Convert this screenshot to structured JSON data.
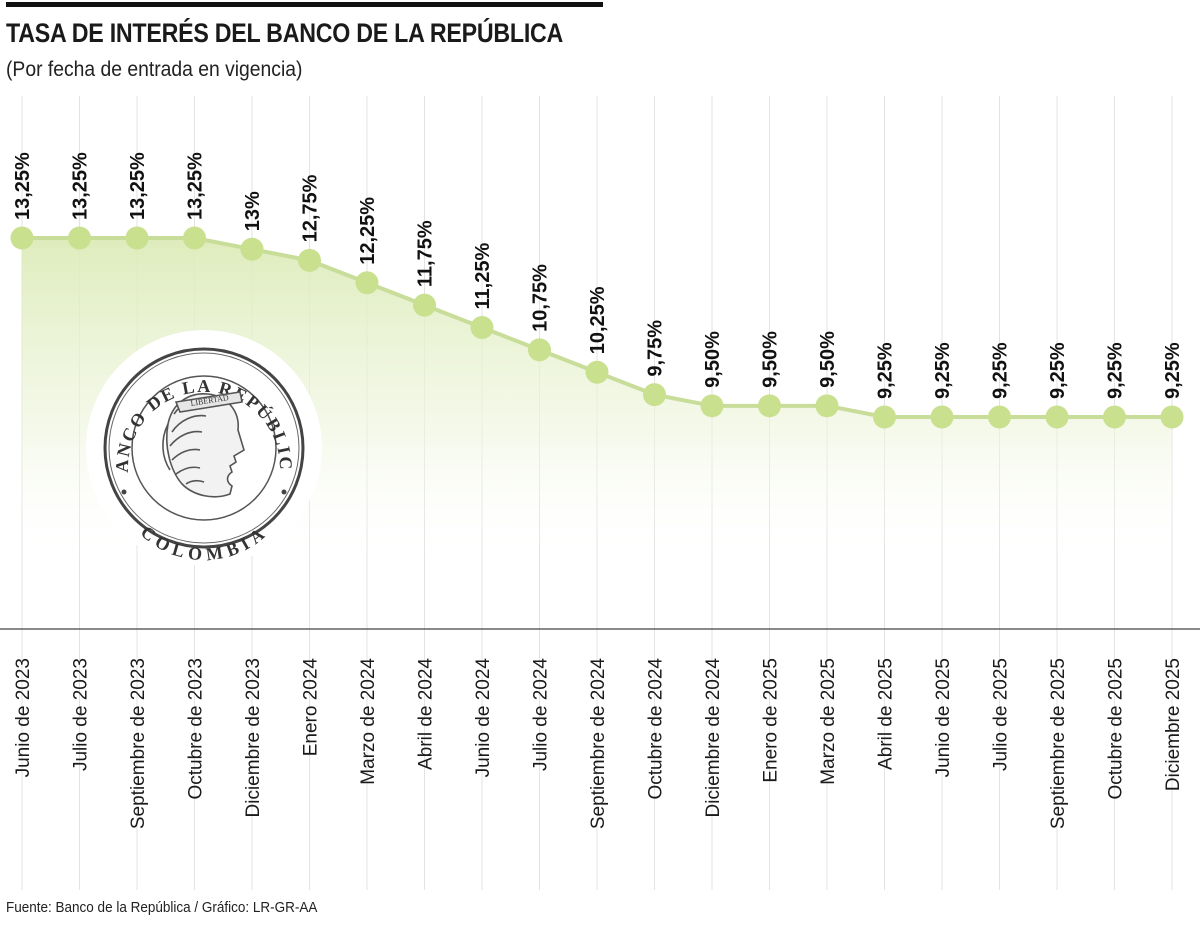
{
  "header": {
    "title": "TASA DE INTERÉS DEL BANCO DE LA REPÚBLICA",
    "subtitle": "(Por fecha de entrada en vigencia)"
  },
  "footer": {
    "source": "Fuente: Banco de la República / Gráfico: LR-GR-AA"
  },
  "emblem": {
    "top_text": "BANCO DE LA REPÚBLICA",
    "bottom_text": "COLOMBIA",
    "ribbon_text": "LIBERTAD"
  },
  "colors": {
    "line": "#c9dd9a",
    "marker": "#c9e08f",
    "area_top": "#dcebb8",
    "grid": "#e3e3e3",
    "axis": "#444444"
  },
  "chart_data": {
    "type": "line",
    "title": "TASA DE INTERÉS DEL BANCO DE LA REPÚBLICA",
    "subtitle": "(Por fecha de entrada en vigencia)",
    "categories": [
      "Junio de 2023",
      "Julio de 2023",
      "Septiembre de 2023",
      "Octubre de 2023",
      "Diciembre de 2023",
      "Enero 2024",
      "Marzo de 2024",
      "Abril de 2024",
      "Junio de 2024",
      "Julio de 2024",
      "Septiembre de 2024",
      "Octubre de 2024",
      "Diciembre de 2024",
      "Enero de 2025",
      "Marzo de 2025",
      "Abril de 2025",
      "Junio de 2025",
      "Julio de 2025",
      "Septiembre de 2025",
      "Octubre de 2025",
      "Diciembre 2025"
    ],
    "values": [
      13.25,
      13.25,
      13.25,
      13.25,
      13.0,
      12.75,
      12.25,
      11.75,
      11.25,
      10.75,
      10.25,
      9.75,
      9.5,
      9.5,
      9.5,
      9.25,
      9.25,
      9.25,
      9.25,
      9.25,
      9.25
    ],
    "value_labels": [
      "13,25%",
      "13,25%",
      "13,25%",
      "13,25%",
      "13%",
      "12,75%",
      "12,25%",
      "11,75%",
      "11,25%",
      "10,75%",
      "10,25%",
      "9,75%",
      "9,50%",
      "9,50%",
      "9,50%",
      "9,25%",
      "9,25%",
      "9,25%",
      "9,25%",
      "9,25%",
      "9,25%"
    ],
    "xlabel": "",
    "ylabel": "",
    "ylim": [
      9.25,
      13.25
    ],
    "grid": true,
    "legend": "none",
    "area_fill": true
  }
}
